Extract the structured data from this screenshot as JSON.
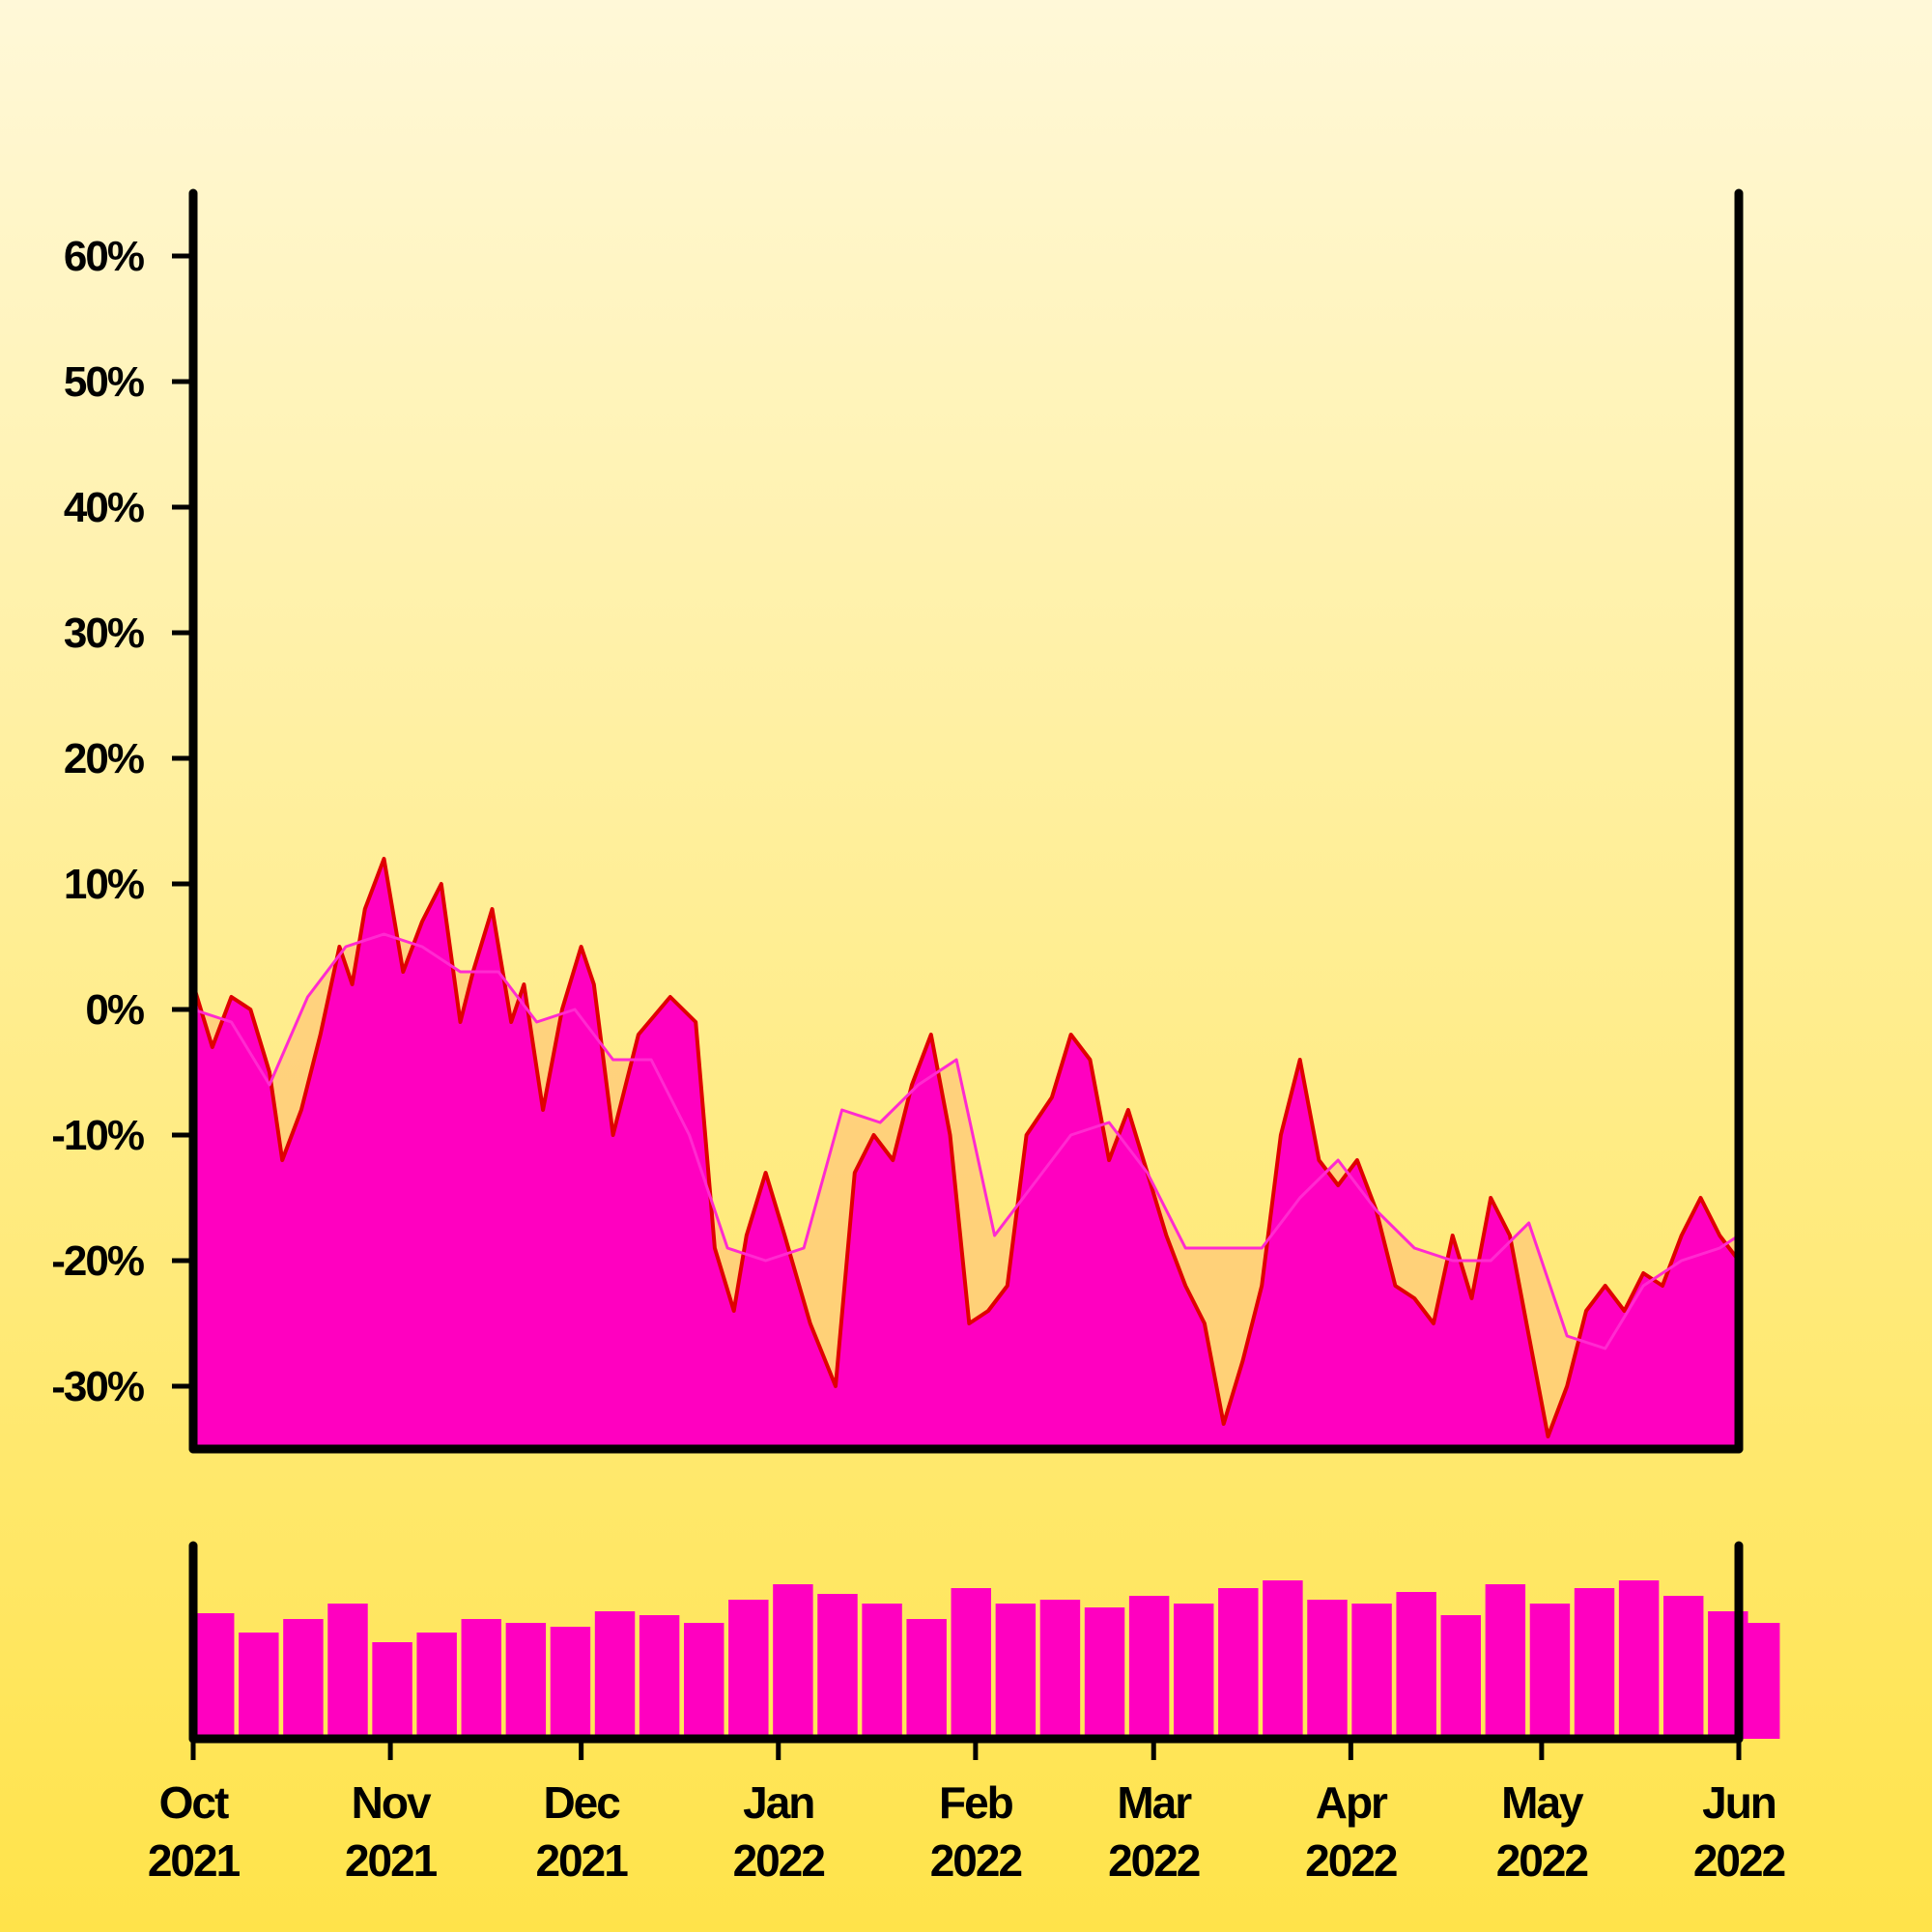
{
  "chart_data": {
    "type": "area",
    "title": "",
    "xlabel": "",
    "ylabel": "",
    "x_range": [
      "2021-10-01",
      "2022-06-01"
    ],
    "ylim": [
      -35,
      65
    ],
    "y_ticks": [
      -30,
      -20,
      -10,
      0,
      10,
      20,
      30,
      40,
      50,
      60
    ],
    "y_tick_labels": [
      "-30%",
      "-20%",
      "-10%",
      "0%",
      "10%",
      "20%",
      "30%",
      "40%",
      "50%",
      "60%"
    ],
    "x_ticks": [
      {
        "date": "2021-10-01",
        "month": "Oct",
        "year": "2021"
      },
      {
        "date": "2021-11-01",
        "month": "Nov",
        "year": "2021"
      },
      {
        "date": "2021-12-01",
        "month": "Dec",
        "year": "2021"
      },
      {
        "date": "2022-01-01",
        "month": "Jan",
        "year": "2022"
      },
      {
        "date": "2022-02-01",
        "month": "Feb",
        "year": "2022"
      },
      {
        "date": "2022-03-01",
        "month": "Mar",
        "year": "2022"
      },
      {
        "date": "2022-04-01",
        "month": "Apr",
        "year": "2022"
      },
      {
        "date": "2022-05-01",
        "month": "May",
        "year": "2022"
      },
      {
        "date": "2022-06-01",
        "month": "Jun",
        "year": "2022"
      }
    ],
    "grid": false,
    "legend": "none",
    "colors": {
      "price_line": "#e00000",
      "area_fill": "#ff00c0",
      "moving_average": "#ff2ad0",
      "band_fill": "#ffc878",
      "volume": "#ff00c0",
      "axis": "#000000"
    },
    "series": [
      {
        "values_kind": "percent_change",
        "x": [
          "2021-10-01",
          "2021-10-04",
          "2021-10-07",
          "2021-10-10",
          "2021-10-13",
          "2021-10-15",
          "2021-10-18",
          "2021-10-21",
          "2021-10-24",
          "2021-10-26",
          "2021-10-28",
          "2021-10-31",
          "2021-11-03",
          "2021-11-06",
          "2021-11-09",
          "2021-11-12",
          "2021-11-14",
          "2021-11-17",
          "2021-11-20",
          "2021-11-22",
          "2021-11-25",
          "2021-11-28",
          "2021-12-01",
          "2021-12-03",
          "2021-12-06",
          "2021-12-10",
          "2021-12-15",
          "2021-12-19",
          "2021-12-22",
          "2021-12-25",
          "2021-12-27",
          "2021-12-30",
          "2022-01-02",
          "2022-01-06",
          "2022-01-10",
          "2022-01-13",
          "2022-01-16",
          "2022-01-19",
          "2022-01-22",
          "2022-01-25",
          "2022-01-28",
          "2022-01-31",
          "2022-02-03",
          "2022-02-06",
          "2022-02-09",
          "2022-02-13",
          "2022-02-16",
          "2022-02-19",
          "2022-02-22",
          "2022-02-25",
          "2022-02-28",
          "2022-03-03",
          "2022-03-06",
          "2022-03-09",
          "2022-03-12",
          "2022-03-15",
          "2022-03-18",
          "2022-03-21",
          "2022-03-24",
          "2022-03-27",
          "2022-03-30",
          "2022-04-02",
          "2022-04-05",
          "2022-04-08",
          "2022-04-11",
          "2022-04-14",
          "2022-04-17",
          "2022-04-20",
          "2022-04-23",
          "2022-04-26",
          "2022-04-29",
          "2022-05-02",
          "2022-05-05",
          "2022-05-08",
          "2022-05-11",
          "2022-05-14",
          "2022-05-17",
          "2022-05-20",
          "2022-05-23",
          "2022-05-26",
          "2022-05-29",
          "2022-06-01"
        ],
        "y": [
          2,
          -3,
          1,
          0,
          -5,
          -12,
          -8,
          -2,
          5,
          2,
          8,
          12,
          3,
          7,
          10,
          -1,
          3,
          8,
          -1,
          2,
          -8,
          0,
          5,
          2,
          -10,
          -2,
          1,
          -1,
          -19,
          -24,
          -18,
          -13,
          -18,
          -25,
          -30,
          -13,
          -10,
          -12,
          -6,
          -2,
          -10,
          -25,
          -24,
          -22,
          -10,
          -7,
          -2,
          -4,
          -12,
          -8,
          -13,
          -18,
          -22,
          -25,
          -33,
          -28,
          -22,
          -10,
          -4,
          -12,
          -14,
          -12,
          -16,
          -22,
          -23,
          -25,
          -18,
          -23,
          -15,
          -18,
          -26,
          -34,
          -30,
          -24,
          -22,
          -24,
          -21,
          -22,
          -18,
          -15,
          -18,
          -20
        ]
      }
    ],
    "overlays": [
      {
        "values_kind": "moving_average",
        "x": [
          "2021-10-01",
          "2021-10-07",
          "2021-10-13",
          "2021-10-19",
          "2021-10-25",
          "2021-10-31",
          "2021-11-06",
          "2021-11-12",
          "2021-11-18",
          "2021-11-24",
          "2021-11-30",
          "2021-12-06",
          "2021-12-12",
          "2021-12-18",
          "2021-12-24",
          "2021-12-30",
          "2022-01-05",
          "2022-01-11",
          "2022-01-17",
          "2022-01-23",
          "2022-01-29",
          "2022-02-04",
          "2022-02-10",
          "2022-02-16",
          "2022-02-22",
          "2022-02-28",
          "2022-03-06",
          "2022-03-12",
          "2022-03-18",
          "2022-03-24",
          "2022-03-30",
          "2022-04-05",
          "2022-04-11",
          "2022-04-17",
          "2022-04-23",
          "2022-04-29",
          "2022-05-05",
          "2022-05-11",
          "2022-05-17",
          "2022-05-23",
          "2022-05-29",
          "2022-06-01"
        ],
        "y": [
          0,
          -1,
          -6,
          1,
          5,
          6,
          5,
          3,
          3,
          -1,
          0,
          -4,
          -4,
          -10,
          -19,
          -20,
          -19,
          -8,
          -9,
          -6,
          -4,
          -18,
          -14,
          -10,
          -9,
          -13,
          -19,
          -19,
          -19,
          -15,
          -12,
          -16,
          -19,
          -20,
          -20,
          -17,
          -26,
          -27,
          -22,
          -20,
          -19,
          -18
        ]
      }
    ],
    "volume": {
      "values_kind": "relative_volume",
      "x": [
        "2021-10-01",
        "2021-10-08",
        "2021-10-15",
        "2021-10-22",
        "2021-10-29",
        "2021-11-05",
        "2021-11-12",
        "2021-11-19",
        "2021-11-26",
        "2021-12-03",
        "2021-12-10",
        "2021-12-17",
        "2021-12-24",
        "2021-12-31",
        "2022-01-07",
        "2022-01-14",
        "2022-01-21",
        "2022-01-28",
        "2022-02-04",
        "2022-02-11",
        "2022-02-18",
        "2022-02-25",
        "2022-03-04",
        "2022-03-11",
        "2022-03-18",
        "2022-03-25",
        "2022-04-01",
        "2022-04-08",
        "2022-04-15",
        "2022-04-22",
        "2022-04-29",
        "2022-05-06",
        "2022-05-13",
        "2022-05-20",
        "2022-05-27",
        "2022-06-01"
      ],
      "y": [
        0.65,
        0.55,
        0.62,
        0.7,
        0.5,
        0.55,
        0.62,
        0.6,
        0.58,
        0.66,
        0.64,
        0.6,
        0.72,
        0.8,
        0.75,
        0.7,
        0.62,
        0.78,
        0.7,
        0.72,
        0.68,
        0.74,
        0.7,
        0.78,
        0.82,
        0.72,
        0.7,
        0.76,
        0.64,
        0.8,
        0.7,
        0.78,
        0.82,
        0.74,
        0.66,
        0.6
      ]
    }
  }
}
